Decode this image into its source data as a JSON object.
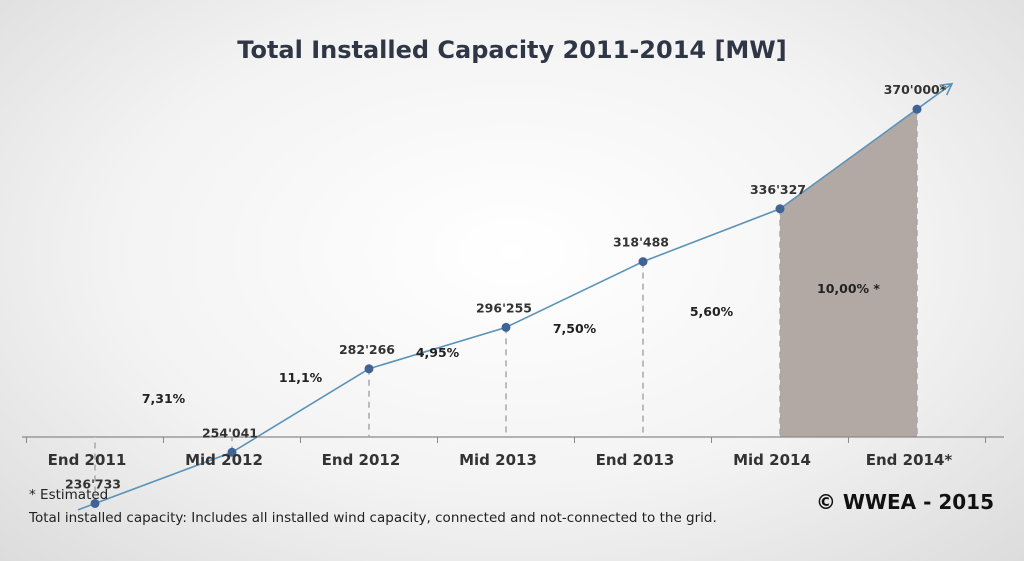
{
  "chart_data": {
    "type": "line",
    "title": "Total Installed Capacity 2011-2014 [MW]",
    "categories": [
      "End 2011",
      "Mid 2012",
      "End 2012",
      "Mid 2013",
      "End 2013",
      "Mid 2014",
      "End 2014*"
    ],
    "series": [
      {
        "values": [
          236733,
          254041,
          282266,
          296255,
          318488,
          336327,
          370000
        ],
        "value_labels": [
          "236'733",
          "254'041",
          "282'266",
          "296'255",
          "318'488",
          "336'327",
          "370'000*"
        ]
      }
    ],
    "growth_labels": [
      "7,31%",
      "11,1%",
      "4,95%",
      "7,50%",
      "5,60%",
      "10,00% *"
    ],
    "shaded_interval": [
      "Mid 2014",
      "End 2014*"
    ],
    "ylim": [
      220000,
      390000
    ],
    "grid": false,
    "colors": {
      "line": "#5b93b8",
      "marker": "#3f6394",
      "shade": "#b3a9a4",
      "axis": "#8a8a8a",
      "drop_line": "#a8a8a8"
    }
  },
  "footnotes": {
    "estimated": "* Estimated",
    "definition": "Total installed capacity: Includes all installed wind capacity, connected and not-connected to the grid."
  },
  "copyright": "© WWEA - 2015"
}
